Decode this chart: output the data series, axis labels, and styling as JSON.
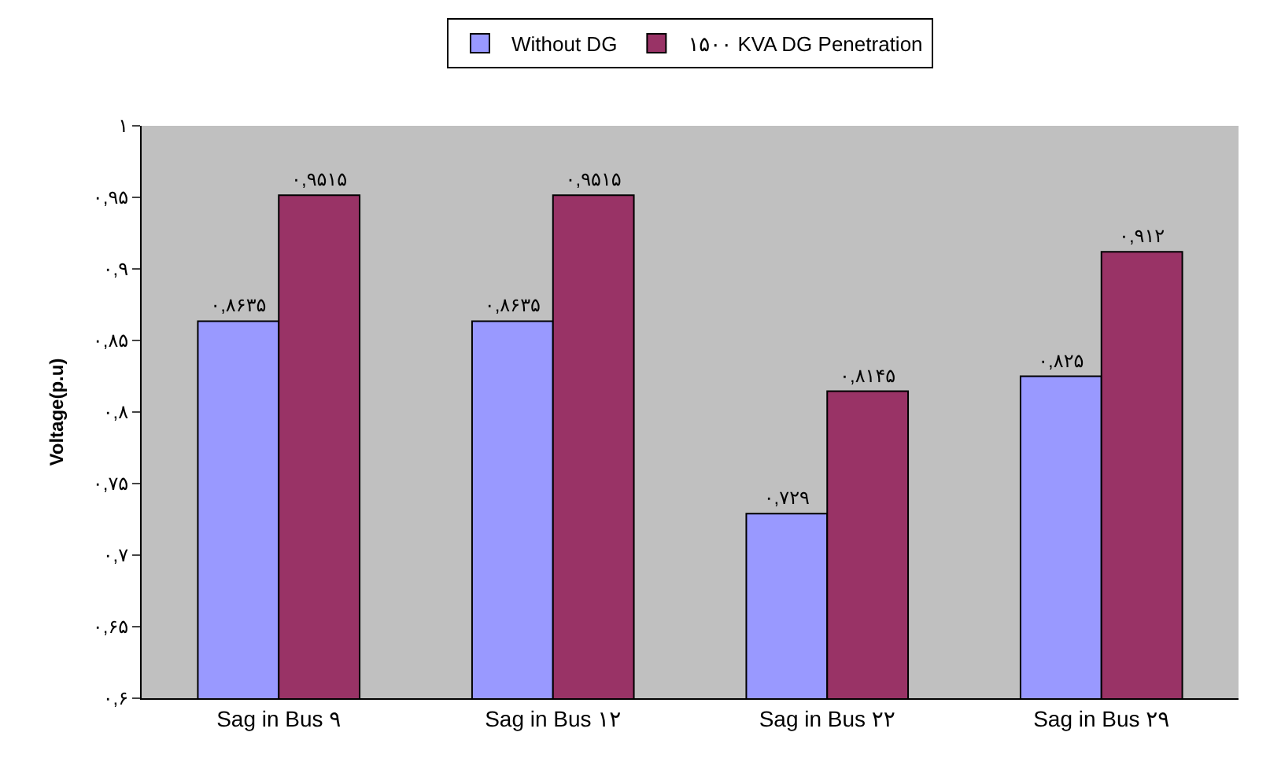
{
  "chart_data": {
    "type": "bar",
    "ylabel": "Voltage(p.u)",
    "categories": [
      "Sag in Bus ۹",
      "Sag in Bus ۱۲",
      "Sag in Bus ۲۲",
      "Sag in Bus ۲۹"
    ],
    "series": [
      {
        "name": "Without DG",
        "color": "#9999ff",
        "values": [
          0.8635,
          0.8635,
          0.729,
          0.825
        ],
        "value_labels": [
          "۰,۸۶۳۵",
          "۰,۸۶۳۵",
          "۰,۷۲۹",
          "۰,۸۲۵"
        ]
      },
      {
        "name": "۱۵۰۰ KVA DG Penetration",
        "color": "#993366",
        "values": [
          0.9515,
          0.9515,
          0.8145,
          0.912
        ],
        "value_labels": [
          "۰,۹۵۱۵",
          "۰,۹۵۱۵",
          "۰,۸۱۴۵",
          "۰,۹۱۲"
        ]
      }
    ],
    "ylim": [
      0.6,
      1
    ],
    "yticks": [
      {
        "value": 0.6,
        "label": "۰,۶"
      },
      {
        "value": 0.65,
        "label": "۰,۶۵"
      },
      {
        "value": 0.7,
        "label": "۰,۷"
      },
      {
        "value": 0.75,
        "label": "۰,۷۵"
      },
      {
        "value": 0.8,
        "label": "۰,۸"
      },
      {
        "value": 0.85,
        "label": "۰,۸۵"
      },
      {
        "value": 0.9,
        "label": "۰,۹"
      },
      {
        "value": 0.95,
        "label": "۰,۹۵"
      },
      {
        "value": 1,
        "label": "۱"
      }
    ],
    "grid": false,
    "legend": "top"
  }
}
